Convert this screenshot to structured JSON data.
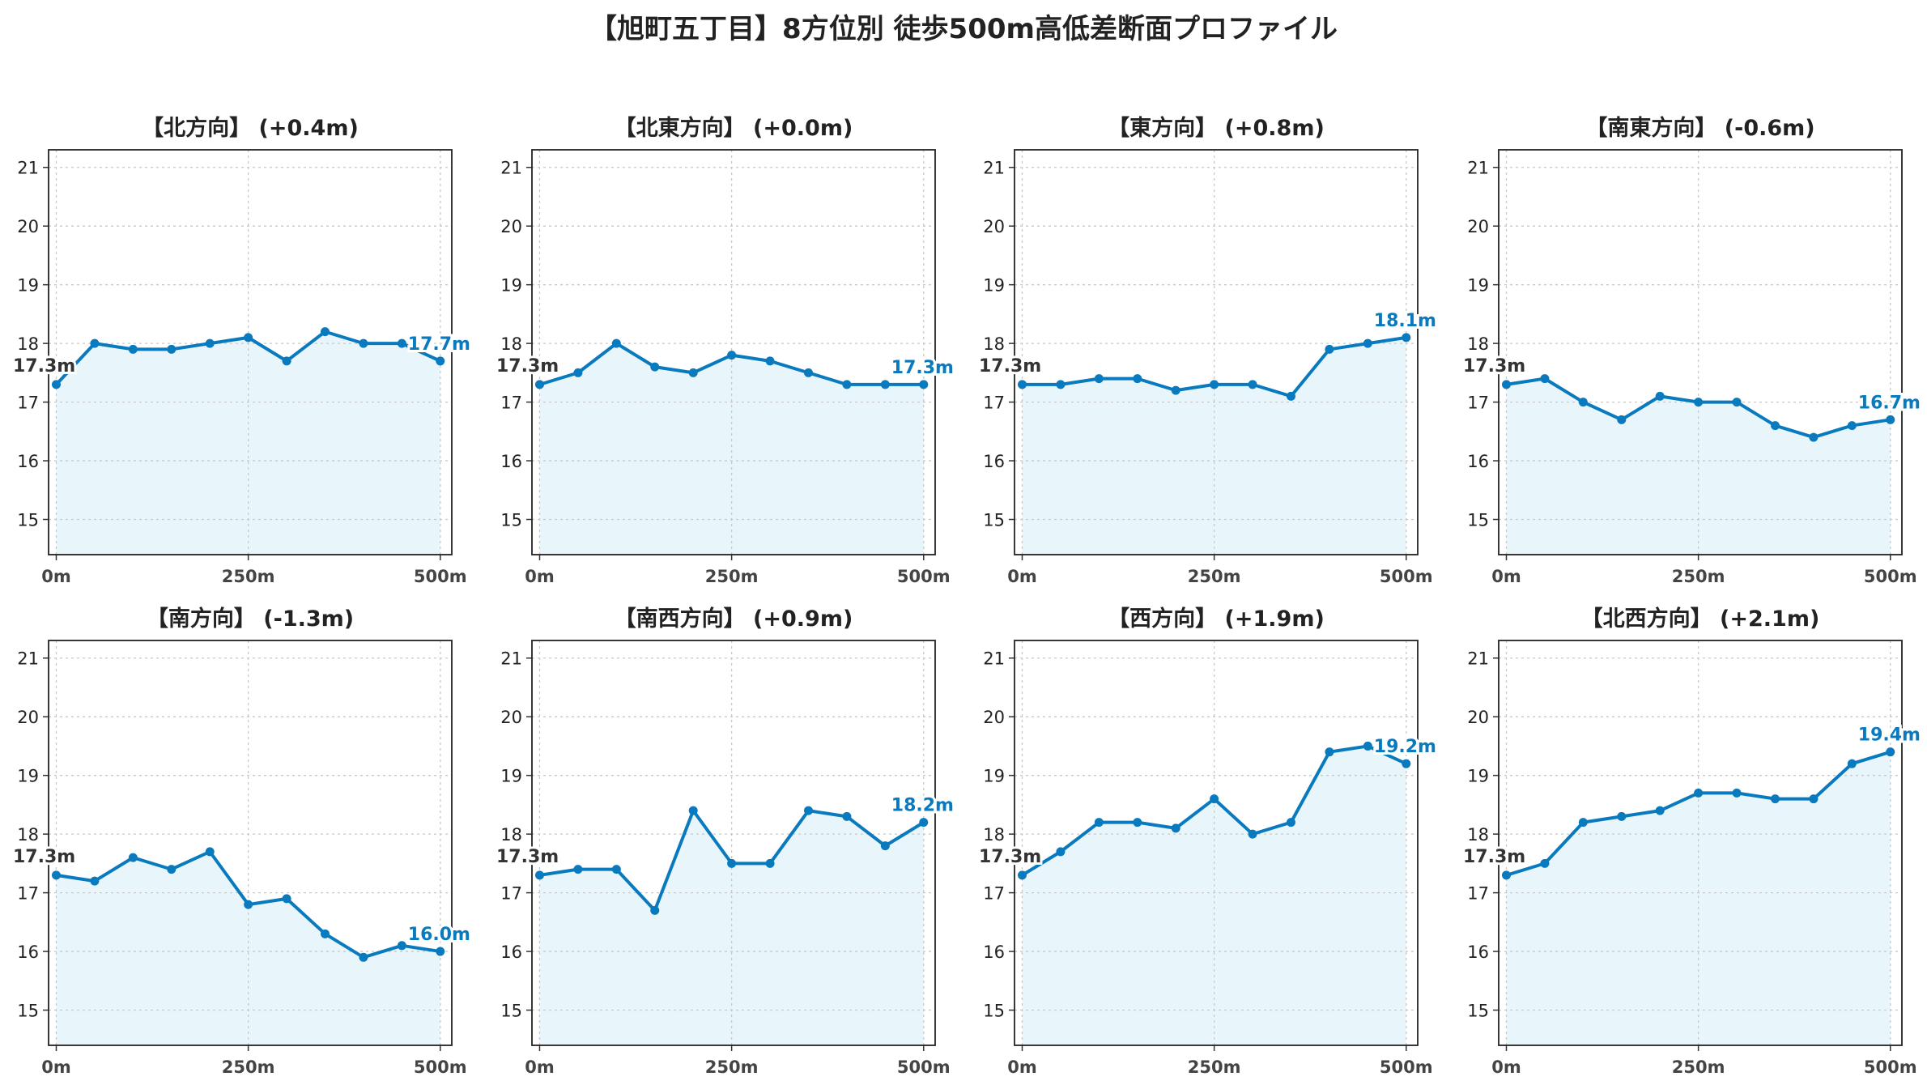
{
  "title": "【旭町五丁目】8方位別 徒歩500m高低差断面プロファイル",
  "colors": {
    "line": "#0a7abf",
    "fill": "#e8f6fc",
    "start_label": "#333333",
    "end_label": "#0a7abf",
    "grid": "#c8c8c8"
  },
  "chart_data": [
    {
      "type": "area",
      "title": "【北方向】 (+0.4m)",
      "x": [
        0,
        50,
        100,
        150,
        200,
        250,
        300,
        350,
        400,
        450,
        500
      ],
      "y": [
        17.3,
        18.0,
        17.9,
        17.9,
        18.0,
        18.1,
        17.7,
        18.2,
        18.0,
        18.0,
        17.7
      ],
      "xticks": [
        "0m",
        "250m",
        "500m"
      ],
      "yticks": [
        15,
        16,
        17,
        18,
        19,
        20,
        21
      ],
      "ylim": [
        14.4,
        21.3
      ],
      "xlim": [
        -10,
        515
      ],
      "grid": true,
      "start_label": "17.3m",
      "end_label": "17.7m"
    },
    {
      "type": "area",
      "title": "【北東方向】 (+0.0m)",
      "x": [
        0,
        50,
        100,
        150,
        200,
        250,
        300,
        350,
        400,
        450,
        500
      ],
      "y": [
        17.3,
        17.5,
        18.0,
        17.6,
        17.5,
        17.8,
        17.7,
        17.5,
        17.3,
        17.3,
        17.3
      ],
      "xticks": [
        "0m",
        "250m",
        "500m"
      ],
      "yticks": [
        15,
        16,
        17,
        18,
        19,
        20,
        21
      ],
      "ylim": [
        14.4,
        21.3
      ],
      "xlim": [
        -10,
        515
      ],
      "grid": true,
      "start_label": "17.3m",
      "end_label": "17.3m"
    },
    {
      "type": "area",
      "title": "【東方向】 (+0.8m)",
      "x": [
        0,
        50,
        100,
        150,
        200,
        250,
        300,
        350,
        400,
        450,
        500
      ],
      "y": [
        17.3,
        17.3,
        17.4,
        17.4,
        17.2,
        17.3,
        17.3,
        17.1,
        17.9,
        18.0,
        18.1
      ],
      "xticks": [
        "0m",
        "250m",
        "500m"
      ],
      "yticks": [
        15,
        16,
        17,
        18,
        19,
        20,
        21
      ],
      "ylim": [
        14.4,
        21.3
      ],
      "xlim": [
        -10,
        515
      ],
      "grid": true,
      "start_label": "17.3m",
      "end_label": "18.1m"
    },
    {
      "type": "area",
      "title": "【南東方向】 (-0.6m)",
      "x": [
        0,
        50,
        100,
        150,
        200,
        250,
        300,
        350,
        400,
        450,
        500
      ],
      "y": [
        17.3,
        17.4,
        17.0,
        16.7,
        17.1,
        17.0,
        17.0,
        16.6,
        16.4,
        16.6,
        16.7
      ],
      "xticks": [
        "0m",
        "250m",
        "500m"
      ],
      "yticks": [
        15,
        16,
        17,
        18,
        19,
        20,
        21
      ],
      "ylim": [
        14.4,
        21.3
      ],
      "xlim": [
        -10,
        515
      ],
      "grid": true,
      "start_label": "17.3m",
      "end_label": "16.7m"
    },
    {
      "type": "area",
      "title": "【南方向】 (-1.3m)",
      "x": [
        0,
        50,
        100,
        150,
        200,
        250,
        300,
        350,
        400,
        450,
        500
      ],
      "y": [
        17.3,
        17.2,
        17.6,
        17.4,
        17.7,
        16.8,
        16.9,
        16.3,
        15.9,
        16.1,
        16.0
      ],
      "xticks": [
        "0m",
        "250m",
        "500m"
      ],
      "yticks": [
        15,
        16,
        17,
        18,
        19,
        20,
        21
      ],
      "ylim": [
        14.4,
        21.3
      ],
      "xlim": [
        -10,
        515
      ],
      "grid": true,
      "start_label": "17.3m",
      "end_label": "16.0m"
    },
    {
      "type": "area",
      "title": "【南西方向】 (+0.9m)",
      "x": [
        0,
        50,
        100,
        150,
        200,
        250,
        300,
        350,
        400,
        450,
        500
      ],
      "y": [
        17.3,
        17.4,
        17.4,
        16.7,
        18.4,
        17.5,
        17.5,
        18.4,
        18.3,
        17.8,
        18.2
      ],
      "xticks": [
        "0m",
        "250m",
        "500m"
      ],
      "yticks": [
        15,
        16,
        17,
        18,
        19,
        20,
        21
      ],
      "ylim": [
        14.4,
        21.3
      ],
      "xlim": [
        -10,
        515
      ],
      "grid": true,
      "start_label": "17.3m",
      "end_label": "18.2m"
    },
    {
      "type": "area",
      "title": "【西方向】 (+1.9m)",
      "x": [
        0,
        50,
        100,
        150,
        200,
        250,
        300,
        350,
        400,
        450,
        500
      ],
      "y": [
        17.3,
        17.7,
        18.2,
        18.2,
        18.1,
        18.6,
        18.0,
        18.2,
        19.4,
        19.5,
        19.2
      ],
      "xticks": [
        "0m",
        "250m",
        "500m"
      ],
      "yticks": [
        15,
        16,
        17,
        18,
        19,
        20,
        21
      ],
      "ylim": [
        14.4,
        21.3
      ],
      "xlim": [
        -10,
        515
      ],
      "grid": true,
      "start_label": "17.3m",
      "end_label": "19.2m"
    },
    {
      "type": "area",
      "title": "【北西方向】 (+2.1m)",
      "x": [
        0,
        50,
        100,
        150,
        200,
        250,
        300,
        350,
        400,
        450,
        500
      ],
      "y": [
        17.3,
        17.5,
        18.2,
        18.3,
        18.4,
        18.7,
        18.7,
        18.6,
        18.6,
        19.2,
        19.4
      ],
      "xticks": [
        "0m",
        "250m",
        "500m"
      ],
      "yticks": [
        15,
        16,
        17,
        18,
        19,
        20,
        21
      ],
      "ylim": [
        14.4,
        21.3
      ],
      "xlim": [
        -10,
        515
      ],
      "grid": true,
      "start_label": "17.3m",
      "end_label": "19.4m"
    }
  ]
}
